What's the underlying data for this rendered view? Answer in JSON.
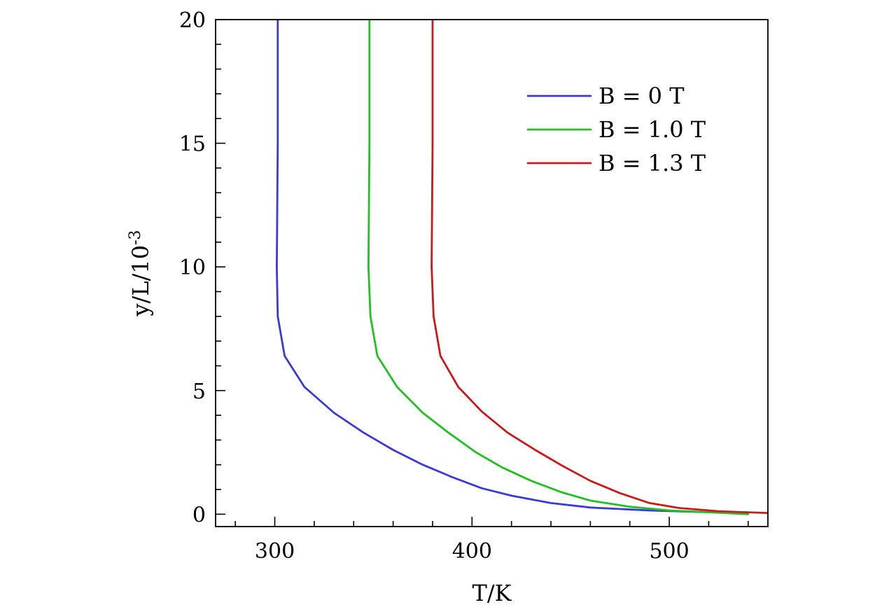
{
  "chart_data": {
    "type": "line",
    "title": "",
    "xlabel": "T/K",
    "ylabel": "y/L/10^-3",
    "xlim": [
      270,
      550
    ],
    "ylim": [
      -0.5,
      20
    ],
    "xticks": [
      300,
      400,
      500
    ],
    "yticks": [
      0,
      5,
      10,
      15,
      20
    ],
    "grid": false,
    "legend_position": "top-right",
    "series": [
      {
        "name": "B = 0 T",
        "color": "#3a3ad6",
        "x": [
          301.5,
          301.5,
          301.0,
          301.5,
          305,
          315,
          330,
          345,
          360,
          375,
          390,
          405,
          420,
          440,
          460,
          490,
          520,
          540
        ],
        "y": [
          20,
          15,
          10,
          8.0,
          6.4,
          5.15,
          4.1,
          3.3,
          2.6,
          2.0,
          1.5,
          1.05,
          0.75,
          0.45,
          0.27,
          0.15,
          0.08,
          0.05
        ]
      },
      {
        "name": "B = 1.0 T",
        "color": "#22c022",
        "x": [
          348,
          348,
          347.5,
          348.5,
          352,
          362,
          375,
          388,
          402,
          415,
          430,
          445,
          460,
          480,
          500,
          520,
          540
        ],
        "y": [
          20,
          15,
          10,
          8.0,
          6.4,
          5.15,
          4.1,
          3.3,
          2.5,
          1.9,
          1.35,
          0.9,
          0.55,
          0.3,
          0.15,
          0.08,
          0.0
        ]
      },
      {
        "name": "B = 1.3 T",
        "color": "#cc1a1a",
        "x": [
          380,
          380,
          379.5,
          380.5,
          384,
          393,
          405,
          418,
          432,
          446,
          460,
          475,
          490,
          505,
          525,
          550
        ],
        "y": [
          20,
          15,
          10,
          8.0,
          6.4,
          5.15,
          4.15,
          3.3,
          2.6,
          1.95,
          1.35,
          0.85,
          0.45,
          0.25,
          0.12,
          0.05
        ]
      }
    ]
  }
}
